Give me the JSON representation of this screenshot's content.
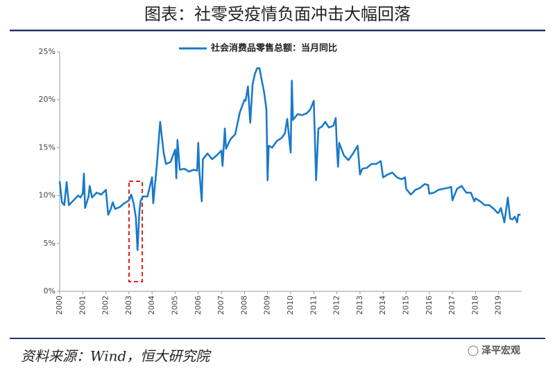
{
  "chart_data": {
    "type": "line",
    "title": "图表：社零受疫情负面冲击大幅回落",
    "source": "资料来源：Wind，恒大研究院",
    "watermark": "泽平宏观",
    "xlim": [
      2000,
      2020
    ],
    "xticks": [
      2000,
      2001,
      2002,
      2003,
      2004,
      2005,
      2006,
      2007,
      2008,
      2009,
      2010,
      2011,
      2012,
      2013,
      2014,
      2015,
      2016,
      2017,
      2018,
      2019
    ],
    "ylim": [
      0,
      25
    ],
    "yticks": [
      {
        "value": 0,
        "label": "0%"
      },
      {
        "value": 5,
        "label": "5%"
      },
      {
        "value": 10,
        "label": "10%"
      },
      {
        "value": 15,
        "label": "15%"
      },
      {
        "value": 20,
        "label": "20%"
      },
      {
        "value": 25,
        "label": "25%"
      }
    ],
    "grid": false,
    "x": [
      2000.0,
      2000.1,
      2000.2,
      2000.3,
      2000.4,
      2000.6,
      2000.8,
      2000.9,
      2001.0,
      2001.05,
      2001.1,
      2001.25,
      2001.3,
      2001.4,
      2001.6,
      2001.8,
      2002.0,
      2002.1,
      2002.2,
      2002.3,
      2002.4,
      2002.6,
      2002.8,
      2003.0,
      2003.1,
      2003.2,
      2003.3,
      2003.37,
      2003.45,
      2003.5,
      2003.6,
      2003.7,
      2003.8,
      2004.0,
      2004.05,
      2004.2,
      2004.35,
      2004.5,
      2004.6,
      2004.8,
      2005.0,
      2005.05,
      2005.1,
      2005.2,
      2005.4,
      2005.6,
      2005.8,
      2005.95,
      2006.0,
      2006.05,
      2006.15,
      2006.2,
      2006.4,
      2006.6,
      2006.8,
      2007.0,
      2007.05,
      2007.15,
      2007.2,
      2007.4,
      2007.6,
      2007.8,
      2008.0,
      2008.05,
      2008.15,
      2008.25,
      2008.35,
      2008.45,
      2008.55,
      2008.65,
      2008.75,
      2008.85,
      2008.95,
      2009.0,
      2009.05,
      2009.2,
      2009.4,
      2009.6,
      2009.75,
      2009.85,
      2010.0,
      2010.05,
      2010.1,
      2010.3,
      2010.5,
      2010.7,
      2010.85,
      2011.0,
      2011.05,
      2011.1,
      2011.2,
      2011.35,
      2011.5,
      2011.65,
      2011.85,
      2011.95,
      2012.0,
      2012.05,
      2012.1,
      2012.3,
      2012.5,
      2012.7,
      2012.9,
      2013.0,
      2013.1,
      2013.3,
      2013.5,
      2013.7,
      2013.9,
      2014.0,
      2014.2,
      2014.4,
      2014.6,
      2014.8,
      2014.95,
      2015.0,
      2015.2,
      2015.4,
      2015.6,
      2015.8,
      2015.95,
      2016.0,
      2016.2,
      2016.4,
      2016.6,
      2016.8,
      2016.95,
      2017.0,
      2017.2,
      2017.4,
      2017.6,
      2017.8,
      2017.95,
      2018.0,
      2018.2,
      2018.4,
      2018.6,
      2018.8,
      2018.95,
      2019.0,
      2019.1,
      2019.25,
      2019.4,
      2019.5,
      2019.6,
      2019.7,
      2019.8,
      2019.85,
      2019.95
    ],
    "series": [
      {
        "name": "社会消费品零售总额：当月同比",
        "color": "#1a7ac8",
        "values": [
          11.5,
          9.3,
          9.0,
          11.4,
          9.0,
          9.5,
          10.0,
          9.8,
          10.2,
          12.3,
          8.7,
          9.9,
          11.0,
          9.8,
          10.3,
          10.1,
          10.6,
          8.0,
          8.5,
          9.3,
          8.6,
          8.8,
          9.2,
          9.5,
          10.1,
          9.2,
          7.7,
          4.3,
          8.3,
          9.4,
          9.9,
          9.9,
          9.9,
          11.9,
          9.2,
          13.0,
          17.7,
          14.5,
          13.3,
          13.5,
          14.8,
          11.8,
          15.8,
          12.7,
          12.8,
          12.5,
          12.7,
          12.6,
          15.5,
          12.4,
          9.4,
          13.8,
          14.4,
          13.8,
          14.2,
          14.7,
          13.1,
          17.0,
          14.9,
          15.9,
          16.4,
          18.7,
          20.0,
          19.9,
          21.4,
          17.6,
          21.6,
          22.7,
          23.3,
          23.3,
          22.0,
          20.8,
          19.0,
          11.6,
          15.2,
          15.0,
          15.7,
          16.0,
          16.5,
          18.0,
          14.5,
          22.0,
          17.9,
          18.5,
          18.4,
          18.6,
          19.0,
          19.9,
          15.8,
          11.6,
          17.0,
          17.2,
          17.7,
          17.1,
          17.3,
          18.1,
          15.0,
          13.0,
          15.5,
          14.2,
          13.7,
          14.4,
          15.2,
          12.2,
          12.8,
          12.9,
          13.3,
          13.3,
          13.6,
          11.9,
          12.2,
          12.4,
          11.9,
          11.7,
          11.9,
          10.7,
          10.1,
          10.6,
          10.8,
          11.2,
          11.1,
          10.2,
          10.3,
          10.6,
          10.7,
          10.8,
          10.9,
          9.5,
          10.7,
          11.0,
          10.3,
          10.3,
          9.4,
          9.7,
          9.4,
          9.0,
          9.0,
          8.6,
          8.2,
          8.2,
          8.7,
          7.2,
          9.8,
          7.6,
          7.5,
          7.8,
          7.2,
          8.0,
          8.0
        ]
      }
    ]
  }
}
